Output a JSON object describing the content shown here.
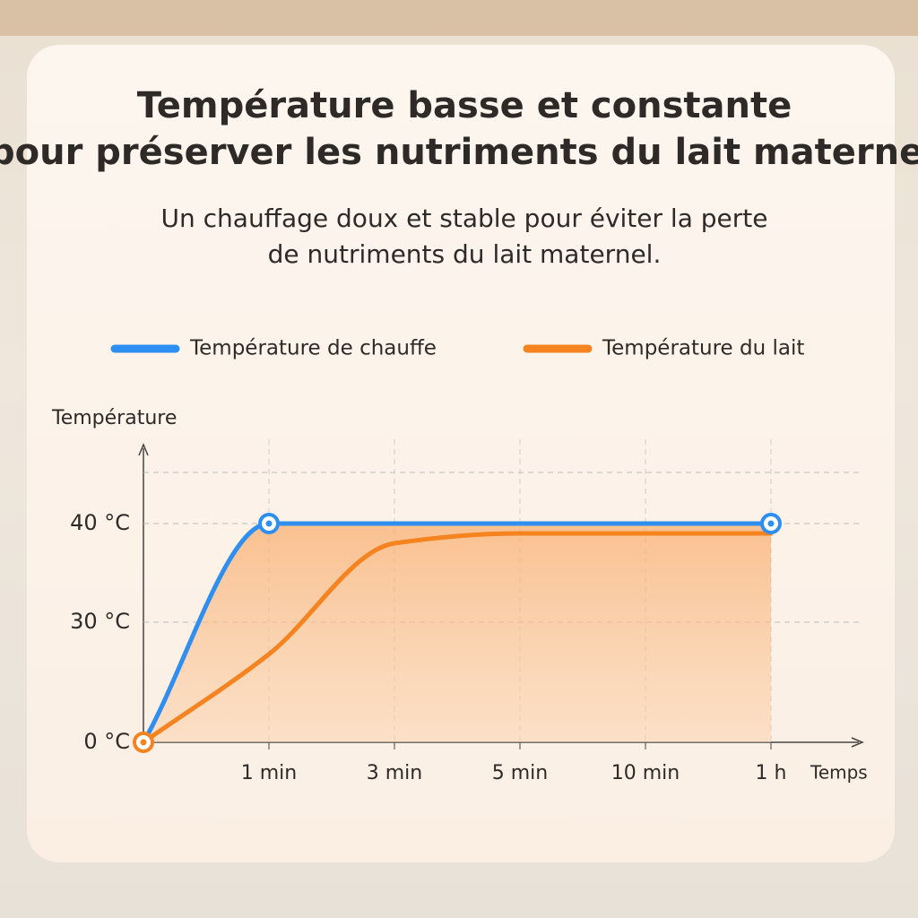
{
  "chart_data": {
    "type": "line",
    "title": [
      "Température basse et constante",
      "pour préserver les nutriments du lait maternel"
    ],
    "subtitle": [
      "Un chauffage doux et stable pour éviter la perte",
      "de nutriments du lait maternel."
    ],
    "y_label": "Température",
    "x_label": "Temps",
    "categories": [
      null,
      "1 min",
      "3 min",
      "5 min",
      "10 min",
      "1 h"
    ],
    "series": [
      {
        "name": "Température de chauffe",
        "color": "#2f8ff0",
        "values": [
          0,
          40,
          40,
          40,
          40,
          40
        ]
      },
      {
        "name": "Température du lait",
        "color": "#f5831f",
        "values": [
          0,
          22,
          38,
          39,
          39,
          39
        ]
      }
    ],
    "ylim": [
      0,
      45
    ],
    "yticks": [
      {
        "value": 0,
        "label": "0 °C"
      },
      {
        "value": 30,
        "label": "30 °C"
      },
      {
        "value": 40,
        "label": "40 °C"
      }
    ],
    "grid": true,
    "legend": "top"
  }
}
